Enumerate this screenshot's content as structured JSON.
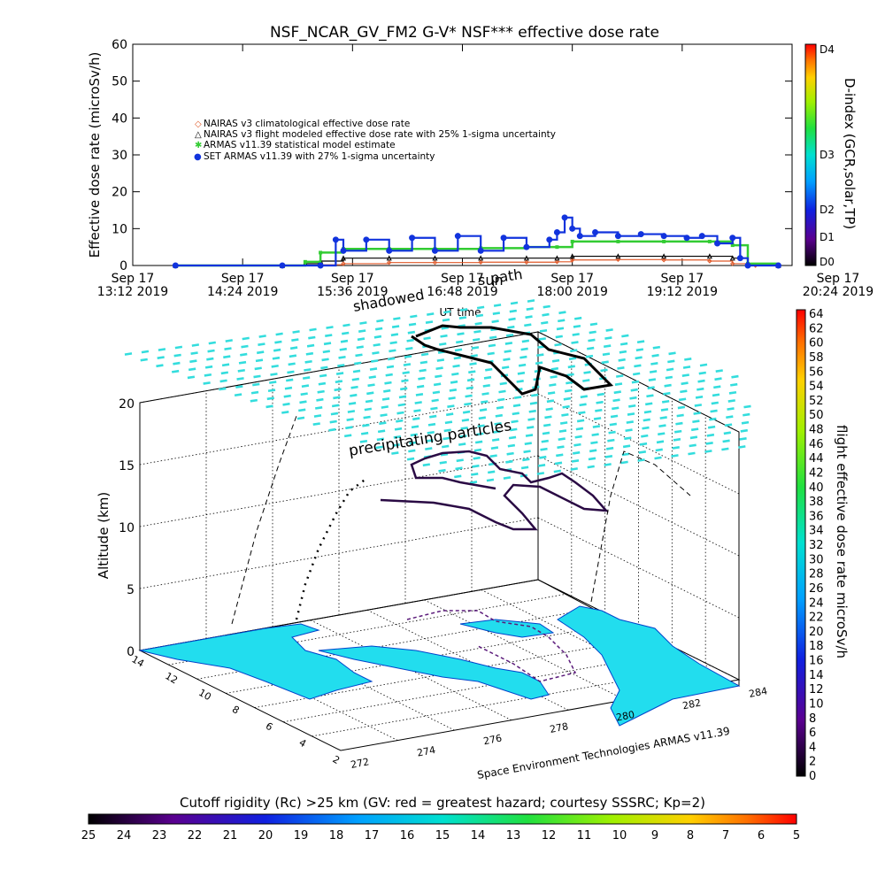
{
  "top_chart": {
    "title": "NSF_NCAR_GV_FM2 G-V* NSF*** effective dose rate",
    "ylabel": "Effective dose rate (microSv/h)",
    "xlabel": "UT time",
    "colorbar_label": "D-index (GCR,solar,TP)",
    "colorbar_ticks": [
      "D4",
      "D3",
      "D2",
      "D1",
      "D0"
    ],
    "legend": [
      {
        "symbol": "◇",
        "color": "#e05a2a",
        "text": "NAIRAS v3 climatological effective dose rate"
      },
      {
        "symbol": "△",
        "color": "#000000",
        "text": "NAIRAS v3 flight modeled effective dose rate with 25% 1-sigma uncertainty"
      },
      {
        "symbol": "✱",
        "color": "#33cc33",
        "text": "ARMAS v11.39 statistical model estimate"
      },
      {
        "symbol": "●",
        "color": "#1133dd",
        "text": "SET ARMAS v11.39 with 27% 1-sigma uncertainty"
      }
    ],
    "annotations": [
      "shadowed",
      "sun",
      "path"
    ]
  },
  "chart_data": [
    {
      "type": "line",
      "title": "NSF_NCAR_GV_FM2 G-V* NSF*** effective dose rate",
      "xlabel": "UT time",
      "ylabel": "Effective dose rate (microSv/h)",
      "ylim": [
        0,
        60
      ],
      "xlim": [
        "13:12",
        "20:24"
      ],
      "yticks": [
        0,
        10,
        20,
        30,
        40,
        50,
        60
      ],
      "xticks": [
        {
          "line1": "Sep 17",
          "line2": "13:12 2019"
        },
        {
          "line1": "Sep 17",
          "line2": "14:24 2019"
        },
        {
          "line1": "Sep 17",
          "line2": "15:36 2019"
        },
        {
          "line1": "Sep 17",
          "line2": "16:48 2019"
        },
        {
          "line1": "Sep 17",
          "line2": "18:00 2019"
        },
        {
          "line1": "Sep 17",
          "line2": "19:12 2019"
        },
        {
          "line1": "Sep 17",
          "line2": "20:24 2019"
        }
      ],
      "grid": false,
      "legend_position": "upper-left",
      "series": [
        {
          "name": "NAIRAS v3 climatological effective dose rate",
          "color": "#e05a2a",
          "x": [
            "13:40",
            "14:50",
            "15:15",
            "15:30",
            "16:00",
            "16:30",
            "17:00",
            "17:30",
            "17:50",
            "18:00",
            "18:30",
            "19:00",
            "19:30",
            "19:45",
            "20:00",
            "20:15"
          ],
          "y": [
            0,
            0,
            0.2,
            0.5,
            0.8,
            0.8,
            0.9,
            0.9,
            1.0,
            1.5,
            1.6,
            1.5,
            1.2,
            0.5,
            0,
            0
          ]
        },
        {
          "name": "NAIRAS v3 flight modeled effective dose rate with 25% 1-sigma uncertainty",
          "color": "#000000",
          "x": [
            "13:40",
            "14:50",
            "15:05",
            "15:15",
            "15:30",
            "16:00",
            "16:30",
            "17:00",
            "17:30",
            "17:50",
            "18:00",
            "18:30",
            "19:00",
            "19:30",
            "19:45",
            "19:55",
            "20:15"
          ],
          "y": [
            0,
            0,
            0.5,
            1.2,
            2.0,
            2.0,
            2.0,
            2.0,
            2.0,
            2.0,
            2.5,
            2.5,
            2.5,
            2.5,
            2.0,
            0.3,
            0
          ]
        },
        {
          "name": "ARMAS v11.39 statistical model estimate",
          "color": "#33cc33",
          "x": [
            "13:40",
            "14:50",
            "15:05",
            "15:15",
            "15:30",
            "16:00",
            "16:30",
            "17:00",
            "17:30",
            "17:50",
            "18:00",
            "18:30",
            "19:00",
            "19:30",
            "19:45",
            "19:55",
            "20:15"
          ],
          "y": [
            0,
            0,
            1.0,
            3.5,
            4.5,
            4.5,
            4.5,
            4.7,
            5.0,
            5.0,
            6.5,
            6.5,
            6.5,
            6.5,
            5.5,
            0.5,
            0
          ]
        },
        {
          "name": "SET ARMAS v11.39 with 27% 1-sigma uncertainty",
          "color": "#1133dd",
          "x": [
            "13:40",
            "14:50",
            "15:15",
            "15:25",
            "15:30",
            "15:45",
            "16:00",
            "16:15",
            "16:30",
            "16:45",
            "17:00",
            "17:15",
            "17:30",
            "17:45",
            "17:50",
            "17:55",
            "18:00",
            "18:05",
            "18:15",
            "18:30",
            "18:45",
            "19:00",
            "19:15",
            "19:25",
            "19:35",
            "19:45",
            "19:50",
            "19:55",
            "20:15"
          ],
          "y": [
            0,
            0,
            0,
            7,
            4,
            7,
            4,
            7.5,
            4,
            8,
            4,
            7.5,
            5,
            7,
            9,
            13,
            10,
            8,
            9,
            8,
            8.5,
            8,
            7.5,
            8,
            6,
            7.5,
            2,
            0,
            0
          ]
        }
      ],
      "annotations": [
        "shadowed",
        "sun",
        "path"
      ]
    },
    {
      "type": "scatter",
      "title": "",
      "zlabel": "Altitude (km)",
      "zticks": [
        0,
        5,
        10,
        15,
        20
      ],
      "x_ticks": [
        272,
        274,
        276,
        278,
        280,
        282,
        284
      ],
      "y_ticks": [
        2,
        4,
        6,
        8,
        10,
        12,
        14
      ],
      "annotation": "precipitating particles",
      "credit": "Space Environment Technologies ARMAS v11.39",
      "colorbar_label": "flight effective dose rate microSv/h",
      "colorbar_ticks": [
        0,
        2,
        4,
        6,
        8,
        10,
        12,
        14,
        16,
        18,
        20,
        22,
        24,
        26,
        28,
        30,
        32,
        34,
        36,
        38,
        40,
        42,
        44,
        46,
        48,
        50,
        52,
        54,
        56,
        58,
        60,
        62,
        64
      ]
    }
  ],
  "bottom_bar": {
    "title": "Cutoff rigidity (Rc) >25 km (GV: red = greatest hazard; courtesy SSSRC; Kp=2)",
    "ticks": [
      25,
      24,
      23,
      22,
      21,
      20,
      19,
      18,
      17,
      16,
      15,
      14,
      13,
      12,
      11,
      10,
      9,
      8,
      7,
      6,
      5
    ]
  }
}
